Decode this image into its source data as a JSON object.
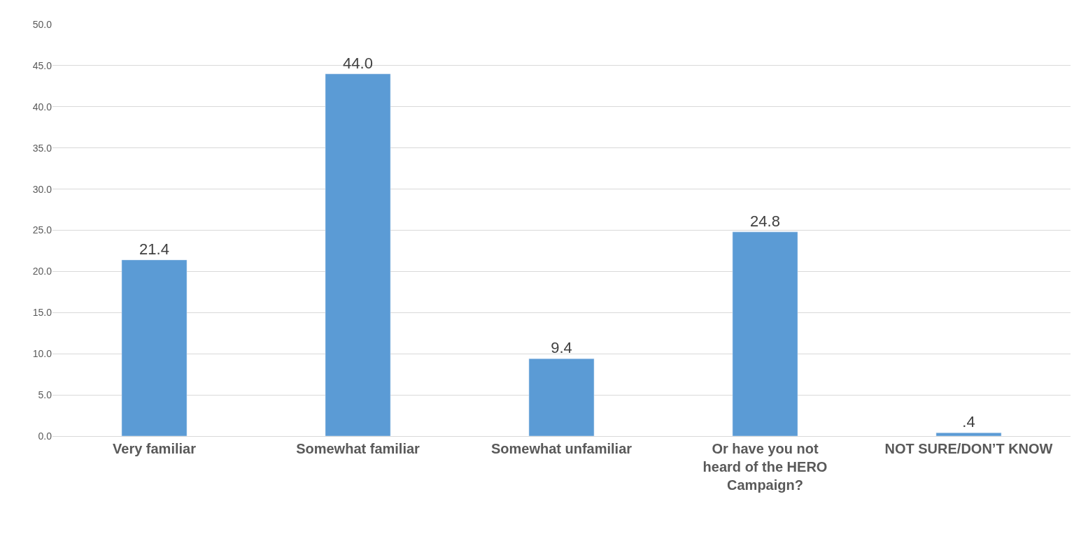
{
  "chart_data": {
    "type": "bar",
    "categories": [
      "Very familiar",
      "Somewhat familiar",
      "Somewhat unfamiliar",
      "Or have you not heard of the HERO Campaign?",
      "NOT SURE/DON’T KNOW"
    ],
    "values": [
      21.4,
      44.0,
      9.4,
      24.8,
      0.4
    ],
    "value_labels": [
      "21.4",
      "44.0",
      "9.4",
      "24.8",
      ".4"
    ],
    "color": "#5b9bd5",
    "ylim": [
      0,
      50
    ],
    "yticks": [
      {
        "value": 0,
        "label": "0.0"
      },
      {
        "value": 5,
        "label": "5.0"
      },
      {
        "value": 10,
        "label": "10.0"
      },
      {
        "value": 15,
        "label": "15.0"
      },
      {
        "value": 20,
        "label": "20.0"
      },
      {
        "value": 25,
        "label": "25.0"
      },
      {
        "value": 30,
        "label": "30.0"
      },
      {
        "value": 35,
        "label": "35.0"
      },
      {
        "value": 40,
        "label": "40.0"
      },
      {
        "value": 45,
        "label": "45.0"
      },
      {
        "value": 50,
        "label": "50.0"
      }
    ],
    "grid": "y",
    "legend": false
  }
}
